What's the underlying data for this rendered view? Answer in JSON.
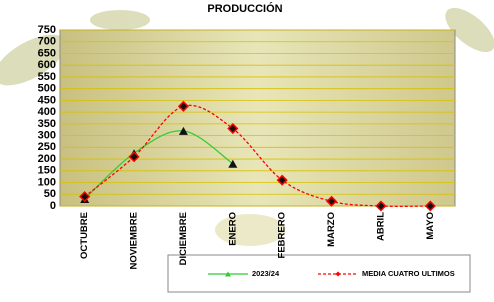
{
  "chart_data": {
    "type": "line",
    "title": "PRODUCCIÓN",
    "categories": [
      "OCTUBRE",
      "NOVIEMBRE",
      "DICIEMBRE",
      "ENERO",
      "FEBRERO",
      "MARZO",
      "ABRIL",
      "MAYO"
    ],
    "series": [
      {
        "name": "2023/24",
        "color": "#33cc33",
        "values": [
          30,
          225,
          320,
          180,
          null,
          null,
          null,
          null
        ]
      },
      {
        "name": "MEDIA CUATRO ULTIMOS",
        "color": "#ff0000",
        "values": [
          40,
          210,
          425,
          330,
          110,
          20,
          0,
          0
        ]
      }
    ],
    "ylim": [
      0,
      750
    ],
    "yticks": [
      0,
      50,
      100,
      150,
      200,
      250,
      300,
      350,
      400,
      450,
      500,
      550,
      600,
      650,
      700,
      750
    ],
    "grid": true
  }
}
